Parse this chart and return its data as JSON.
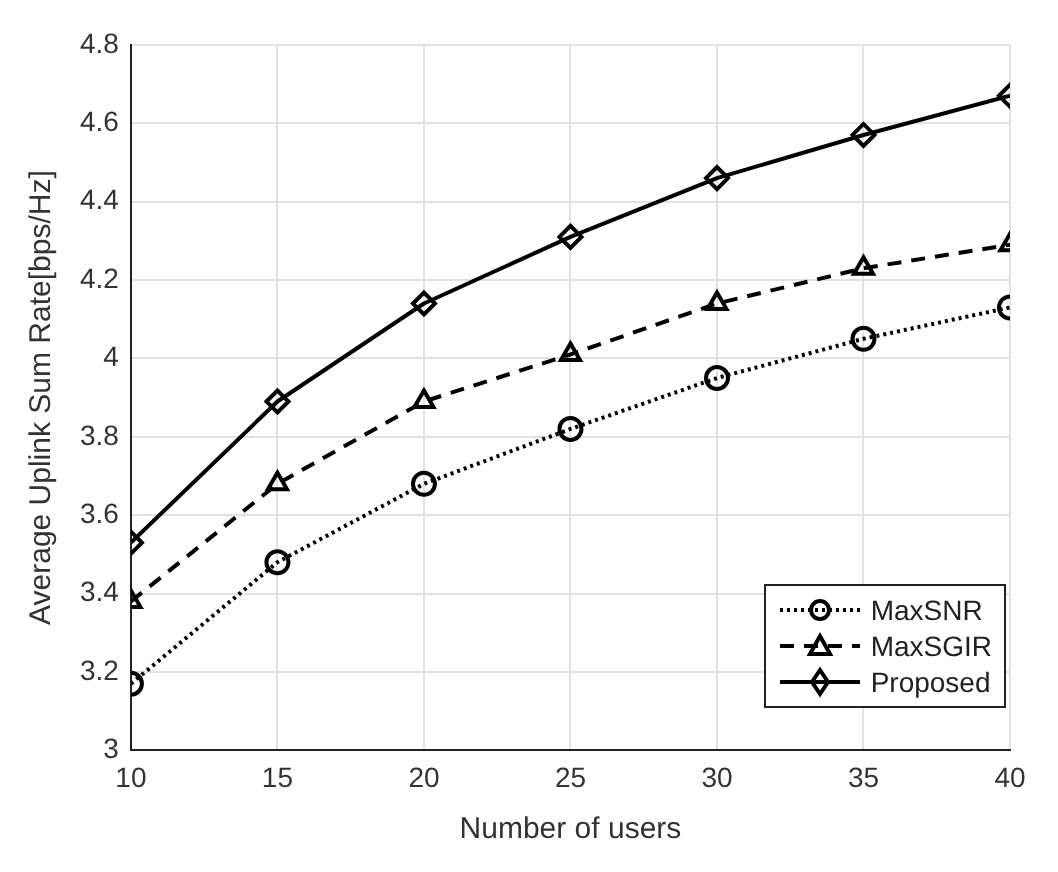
{
  "chart_data": {
    "type": "line",
    "xlabel": "Number of users",
    "ylabel": "Average Uplink Sum Rate[bps/Hz]",
    "x": [
      10,
      15,
      20,
      25,
      30,
      35,
      40
    ],
    "series": [
      {
        "name": "MaxSNR",
        "color": "#000000",
        "marker": "circle",
        "line_style": "dotted",
        "values": [
          3.17,
          3.48,
          3.68,
          3.82,
          3.95,
          4.05,
          4.13
        ]
      },
      {
        "name": "MaxSGIR",
        "color": "#000000",
        "marker": "triangle",
        "line_style": "dashed",
        "values": [
          3.38,
          3.68,
          3.89,
          4.01,
          4.14,
          4.23,
          4.29
        ]
      },
      {
        "name": "Proposed",
        "color": "#000000",
        "marker": "diamond",
        "line_style": "solid",
        "values": [
          3.53,
          3.89,
          4.14,
          4.31,
          4.46,
          4.57,
          4.67
        ]
      }
    ],
    "xlim": [
      10,
      40
    ],
    "xticks": [
      10,
      15,
      20,
      25,
      30,
      35,
      40
    ],
    "ylim": [
      3,
      4.8
    ],
    "yticks": [
      3,
      3.2,
      3.4,
      3.6,
      3.8,
      4,
      4.2,
      4.4,
      4.6,
      4.8
    ],
    "grid": true,
    "legend": "bottom right"
  }
}
